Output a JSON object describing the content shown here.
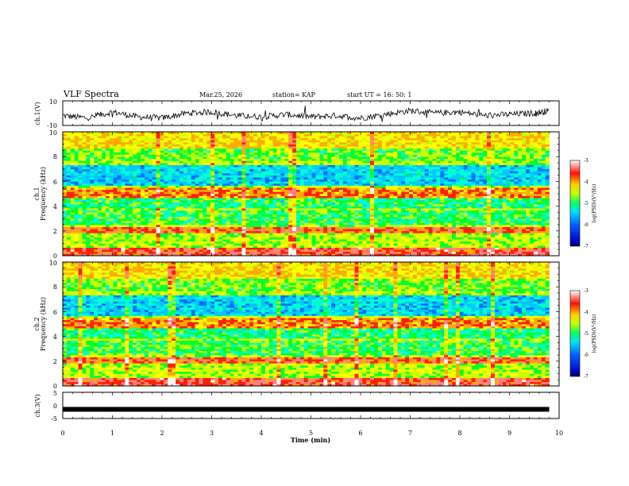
{
  "header": {
    "title": "VLF Spectra",
    "date": "Mar.25, 2026",
    "station": "station= KAP",
    "start": "start  UT =   16: 50: 1"
  },
  "colors": {
    "scale": [
      "#8b00a0",
      "#0000e0",
      "#0070ff",
      "#00c8ff",
      "#00ffd0",
      "#00ff30",
      "#c8ff00",
      "#ffff00",
      "#ffaa00",
      "#ff2000",
      "#ff8080",
      "#ffffff"
    ]
  },
  "chart_data": [
    {
      "type": "line",
      "id": "ch1-waveform",
      "ylabel": "ch.1(V)",
      "ylim": [
        -10,
        10
      ],
      "ytick_labels": [
        "10",
        "-10"
      ],
      "x": [
        0,
        0.5,
        1,
        1.5,
        2,
        2.5,
        3,
        3.5,
        4,
        4.5,
        5,
        5.5,
        6,
        6.5,
        7,
        7.5,
        8,
        8.5,
        9,
        9.5,
        9.8
      ],
      "y": [
        -2,
        -4,
        1,
        -3,
        -4,
        0,
        1,
        -2,
        -3,
        -1,
        -3,
        -2,
        -4,
        -1,
        2,
        0,
        1,
        -2,
        -1,
        0,
        2
      ]
    },
    {
      "type": "heatmap",
      "id": "ch1-spectrogram",
      "ylabel": "Frequency (kHz)",
      "channel_label": "ch.1",
      "ylim": [
        0,
        10
      ],
      "ytick_labels": [
        "0",
        "2",
        "4",
        "6",
        "8",
        "10"
      ],
      "colorbar": {
        "label": "log(PSD)(V²/Hz)",
        "range": [
          -7,
          -3
        ],
        "tick_labels": [
          "-3",
          "-4",
          "-5",
          "-6",
          "-7"
        ]
      }
    },
    {
      "type": "heatmap",
      "id": "ch2-spectrogram",
      "ylabel": "Frequency (kHz)",
      "channel_label": "ch.2",
      "ylim": [
        0,
        10
      ],
      "ytick_labels": [
        "0",
        "2",
        "4",
        "6",
        "8",
        "10"
      ],
      "colorbar": {
        "label": "log(PSD)(V²/Hz)",
        "range": [
          -7,
          -3
        ],
        "tick_labels": [
          "-3",
          "-4",
          "-5",
          "-6",
          "-7"
        ]
      }
    },
    {
      "type": "line",
      "id": "ch3-waveform",
      "ylabel": "ch.3(V)",
      "ylim": [
        -5,
        5
      ],
      "ytick_labels": [
        "5",
        "0",
        "-5"
      ],
      "x": [
        0,
        9.8
      ],
      "y": [
        -1.5,
        -1.5
      ]
    }
  ],
  "x_axis": {
    "label": "Time (min)",
    "range": [
      0,
      10
    ],
    "tick_labels": [
      "0",
      "1",
      "2",
      "3",
      "4",
      "5",
      "6",
      "7",
      "8",
      "9",
      "10"
    ]
  }
}
